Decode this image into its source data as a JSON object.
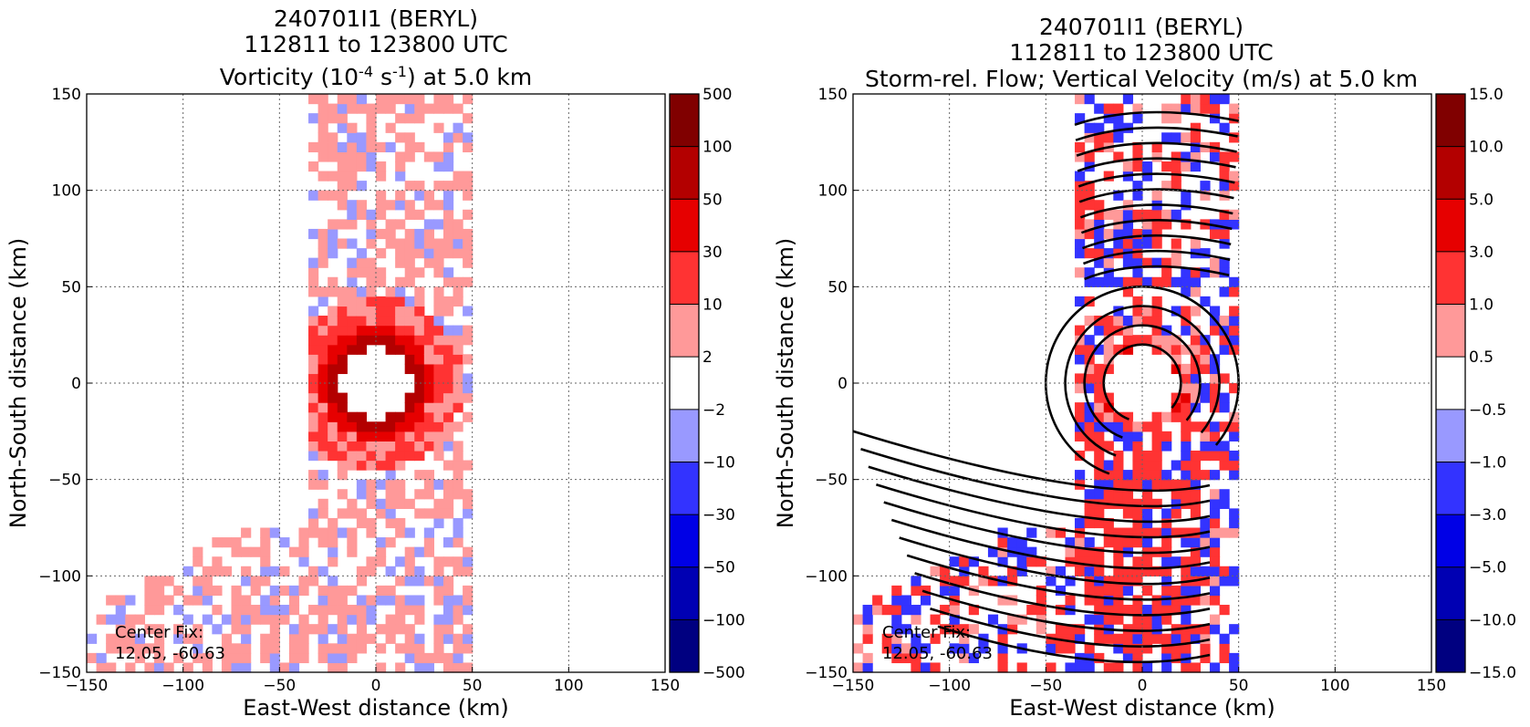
{
  "figure": {
    "panels": [
      {
        "title_lines": [
          "240701I1 (BERYL)",
          "112811 to 123800 UTC"
        ],
        "title_main": "Vorticity (10",
        "title_sup1": "-4",
        "title_mid": " s",
        "title_sup2": "-1",
        "title_end": ") at 5.0 km",
        "xlabel": "East-West distance (km)",
        "ylabel": "North-South distance (km)",
        "center_fix_label": "Center Fix:",
        "center_fix_value": "12.05, -60.63",
        "colorbar_ticks": [
          "500",
          "100",
          "50",
          "30",
          "10",
          "2",
          "−2",
          "−10",
          "−30",
          "−50",
          "−100",
          "−500"
        ]
      },
      {
        "title_lines": [
          "240701I1 (BERYL)",
          "112811 to 123800 UTC"
        ],
        "title_main": "Storm-rel. Flow; Vertical Velocity (m/s) at 5.0 km",
        "xlabel": "East-West distance (km)",
        "ylabel": "North-South distance (km)",
        "center_fix_label": "Center Fix:",
        "center_fix_value": "12.05, -60.63",
        "colorbar_ticks": [
          "15.0",
          "10.0",
          "5.0",
          "3.0",
          "1.0",
          "0.5",
          "−0.5",
          "−1.0",
          "−3.0",
          "−5.0",
          "−10.0",
          "−15.0"
        ]
      }
    ],
    "colorbar_colors": [
      "#800000",
      "#b30000",
      "#e60000",
      "#ff3333",
      "#ff9999",
      "#ffffff",
      "#9999ff",
      "#3333ff",
      "#0000e6",
      "#0000b3",
      "#000080"
    ]
  },
  "chart_data": [
    {
      "type": "heatmap",
      "title": "240701I1 (BERYL) 112811 to 123800 UTC Vorticity (10^-4 s^-1) at 5.0 km",
      "xlabel": "East-West distance (km)",
      "ylabel": "North-South distance (km)",
      "xlim": [
        -150,
        150
      ],
      "ylim": [
        -150,
        150
      ],
      "x_ticks": [
        -150,
        -100,
        -50,
        0,
        50,
        100,
        150
      ],
      "y_ticks": [
        -150,
        -100,
        -50,
        0,
        50,
        100,
        150
      ],
      "grid": true,
      "colorbar_levels": [
        -500,
        -100,
        -50,
        -30,
        -10,
        -2,
        2,
        10,
        30,
        50,
        100,
        500
      ],
      "center_fix": [
        12.05,
        -60.63
      ],
      "features": {
        "eye_radius_km": 18,
        "inner_ring_radius_km": 30,
        "data_swath_ns": {
          "x": [
            -35,
            50
          ],
          "y": [
            -150,
            150
          ]
        },
        "data_swath_ew": {
          "x": [
            -150,
            30
          ],
          "y": [
            -150,
            -75
          ]
        }
      }
    },
    {
      "type": "heatmap",
      "title": "240701I1 (BERYL) 112811 to 123800 UTC Storm-rel. Flow; Vertical Velocity (m/s) at 5.0 km",
      "xlabel": "East-West distance (km)",
      "ylabel": "North-South distance (km)",
      "xlim": [
        -150,
        150
      ],
      "ylim": [
        -150,
        150
      ],
      "x_ticks": [
        -150,
        -100,
        -50,
        0,
        50,
        100,
        150
      ],
      "y_ticks": [
        -150,
        -100,
        -50,
        0,
        50,
        100,
        150
      ],
      "grid": true,
      "colorbar_levels": [
        -15.0,
        -10.0,
        -5.0,
        -3.0,
        -1.0,
        -0.5,
        0.5,
        1.0,
        3.0,
        5.0,
        10.0,
        15.0
      ],
      "center_fix": [
        12.05,
        -60.63
      ],
      "streamline_circulation": "cyclonic",
      "streamline_rings_km": [
        20,
        30,
        40,
        50
      ],
      "features": {
        "eye_radius_km": 18,
        "data_swath_ns": {
          "x": [
            -35,
            50
          ],
          "y": [
            -150,
            150
          ]
        },
        "data_swath_ew": {
          "x": [
            -150,
            35
          ],
          "y": [
            -150,
            -75
          ]
        }
      }
    }
  ]
}
